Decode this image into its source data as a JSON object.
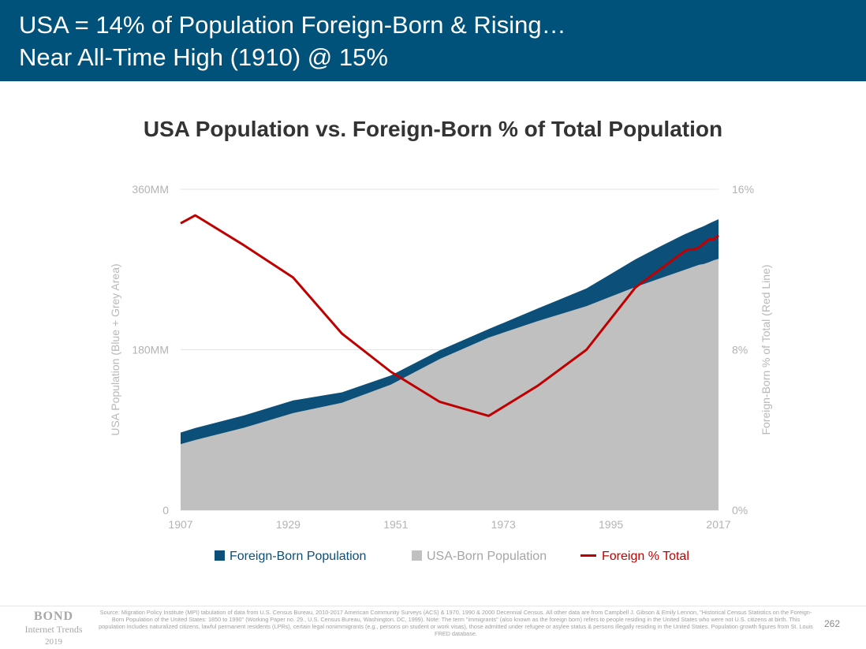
{
  "header": {
    "line1": "USA = 14% of Population Foreign-Born & Rising…",
    "line2": "Near All-Time High (1910) @ 15%",
    "background": "#00527a"
  },
  "chart_data": {
    "type": "area",
    "title": "USA Population vs. Foreign-Born % of Total Population",
    "x_ticks": [
      "1907",
      "1929",
      "1951",
      "1973",
      "1995",
      "2017"
    ],
    "xlim": [
      1907,
      2017
    ],
    "y_left": {
      "label": "USA Population (Blue + Grey Area)",
      "ticks": [
        "0",
        "180MM",
        "360MM"
      ],
      "lim": [
        0,
        360
      ]
    },
    "y_right": {
      "label": "Foreign-Born % of Total (Red Line)",
      "ticks": [
        "0%",
        "8%",
        "16%"
      ],
      "lim": [
        0,
        16
      ]
    },
    "grid": true,
    "legend_position": "bottom",
    "x": [
      1907,
      1910,
      1920,
      1930,
      1940,
      1950,
      1960,
      1970,
      1980,
      1990,
      2000,
      2005,
      2010,
      2011,
      2012,
      2013,
      2014,
      2015,
      2016,
      2017
    ],
    "series": [
      {
        "name": "Foreign-Born Population",
        "kind": "area",
        "color": "#0c4f78",
        "values": [
          13.0,
          13.5,
          13.9,
          14.2,
          11.6,
          10.3,
          9.7,
          9.6,
          14.1,
          19.8,
          31.1,
          35.7,
          39.9,
          40.4,
          40.8,
          41.3,
          42.4,
          43.3,
          43.7,
          44.5
        ]
      },
      {
        "name": "USA-Born Population",
        "kind": "area",
        "color": "#c0c0c0",
        "values": [
          74.1,
          78.7,
          92.5,
          108.9,
          120.6,
          140.9,
          169.6,
          193.6,
          212.1,
          228.9,
          250.3,
          260.0,
          269.4,
          271.3,
          273.3,
          275.2,
          276.2,
          278.1,
          280.3,
          281.9
        ]
      },
      {
        "name": "Foreign % Total",
        "kind": "line",
        "color": "#c00000",
        "values": [
          14.3,
          14.7,
          13.2,
          11.6,
          8.8,
          6.9,
          5.4,
          4.7,
          6.2,
          8.0,
          11.1,
          12.0,
          12.9,
          13.0,
          13.0,
          13.1,
          13.3,
          13.5,
          13.5,
          13.7
        ]
      }
    ]
  },
  "legend": [
    {
      "label": "Foreign-Born Population",
      "color": "#0c4f78",
      "text_color": "#0c4f78"
    },
    {
      "label": "USA-Born Population",
      "color": "#c0c0c0",
      "text_color": "#a6a6a6"
    },
    {
      "label": "Foreign % Total",
      "color": "#c00000",
      "text_color": "#c00000"
    }
  ],
  "footer": {
    "brand_line1": "BOND",
    "brand_line2": "Internet Trends",
    "brand_line3": "2019",
    "source": "Source: Migration Policy Institute (MPI) tabulation of data from U.S. Census Bureau, 2010-2017 American Community Surveys (ACS) & 1970, 1990 & 2000 Decennial Census. All other data are from Campbell J. Gibson & Emily Lennon, \"Historical Census Statistics on the Foreign-Born Population of the United States: 1850 to 1990\" (Working Paper no. 29., U.S. Census Bureau, Washington, DC, 1999). Note: The term \"immigrants\" (also known as the foreign born) refers to people residing in the United States who were not U.S. citizens at birth. This population includes naturalized citizens, lawful permanent residents (LPRs), certain legal nonimmigrants (e.g., persons on student or work visas), those admitted under refugee or asylee status & persons illegally residing in the United States. Population growth figures from St. Louis FRED database.",
    "page_number": "262"
  }
}
